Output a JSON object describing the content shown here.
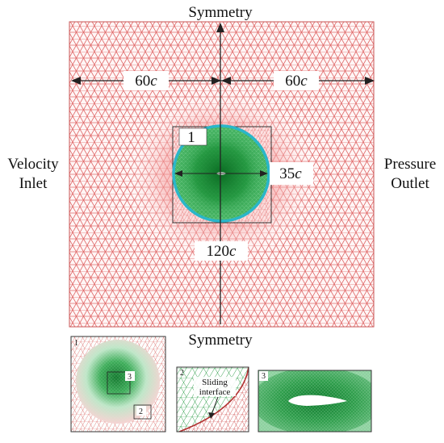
{
  "labels": {
    "top": "Symmetry",
    "bottom": "Symmetry",
    "left_line1": "Velocity",
    "left_line2": "Inlet",
    "right_line1": "Pressure",
    "right_line2": "Outlet"
  },
  "dimensions": {
    "left_width_num": "60",
    "left_width_unit": "c",
    "right_width_num": "60",
    "right_width_unit": "c",
    "inner_height_num": "35",
    "inner_height_unit": "c",
    "total_num": "120",
    "total_unit": "c"
  },
  "markers": {
    "rotating_zone": "1"
  },
  "insets": {
    "inset1_tag": "1",
    "inset1_sub_a": "3",
    "inset1_sub_b": "2",
    "inset2_tag": "2",
    "inset2_text_line1": "Sliding",
    "inset2_text_line2": "interface",
    "inset3_tag": "3"
  },
  "colors": {
    "mesh_outer": "#e06a6a",
    "mesh_inner": "#1e8c3a",
    "interface": "#2ab6c9",
    "airfoil": "#ffffff"
  }
}
